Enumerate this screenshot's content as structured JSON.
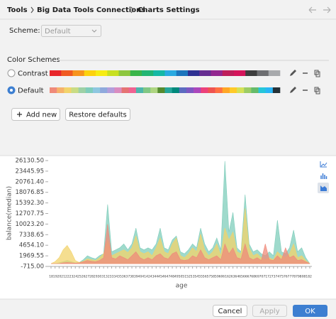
{
  "breadcrumb": [
    "Tools",
    "Big Data Tools Connections",
    "Charts Settings"
  ],
  "scheme": {
    "label": "Scheme:",
    "value": "Default"
  },
  "color_schemes": {
    "title": "Color Schemes",
    "items": [
      {
        "name": "Contrast",
        "selected": false,
        "colors": [
          "#e8262b",
          "#f05a22",
          "#f7941d",
          "#fdd10d",
          "#f7ec13",
          "#c8e021",
          "#8dc63f",
          "#3ab54a",
          "#22b573",
          "#15b8a5",
          "#29aae1",
          "#1c75bc",
          "#2e3192",
          "#662d91",
          "#92278f",
          "#be1e5a",
          "#d4145a",
          "#3d3d3d",
          "#6d6e71",
          "#a7a9ac"
        ]
      },
      {
        "name": "Default",
        "selected": true,
        "colors": [
          "#ef8a7a",
          "#f6b26b",
          "#f2d36b",
          "#c9dc84",
          "#9dd1a6",
          "#7fcdbb",
          "#8ec7e0",
          "#8fa9dc",
          "#b39ddb",
          "#d98cc0",
          "#e57373",
          "#f06292",
          "#4db6ac",
          "#81c784",
          "#aed581",
          "#558b2f",
          "#26a69a",
          "#00897b",
          "#5c6bc0",
          "#7e57c2",
          "#ab47bc",
          "#ec407a",
          "#ef5350",
          "#ff7043",
          "#ffa726",
          "#ffca28",
          "#d4e157",
          "#9ccc65",
          "#66bb6a",
          "#26c6da",
          "#29b6f6",
          "#263238"
        ]
      }
    ]
  },
  "buttons": {
    "add": "Add new",
    "restore": "Restore defaults"
  },
  "chart_data": {
    "type": "area",
    "x_label": "age",
    "y_label": "balance(median)",
    "x": [
      18,
      19,
      20,
      21,
      22,
      23,
      24,
      25,
      26,
      27,
      28,
      29,
      30,
      31,
      32,
      33,
      34,
      35,
      36,
      37,
      38,
      39,
      40,
      41,
      42,
      43,
      44,
      45,
      46,
      47,
      48,
      49,
      50,
      51,
      52,
      53,
      54,
      55,
      56,
      57,
      58,
      59,
      60,
      61,
      62,
      63,
      64,
      65,
      66,
      67,
      68,
      69,
      70,
      71,
      72,
      73,
      74,
      75,
      76,
      77,
      78,
      79,
      80,
      81,
      82
    ],
    "xlim": [
      18,
      82
    ],
    "ylim": [
      -715,
      26130.5
    ],
    "yticks": [
      {
        "value": 26130.5,
        "label": "26130.50"
      },
      23445.95,
      {
        "value": 20761.4,
        "label": "20761.40"
      },
      18076.85,
      {
        "value": 15392.3,
        "label": "15392.30"
      },
      12707.75,
      {
        "value": 10023.2,
        "label": "10023.20"
      },
      7338.65,
      {
        "value": 4654.1,
        "label": "4654.10"
      },
      1969.55,
      {
        "value": -715,
        "label": "-715.00"
      }
    ],
    "series": [
      {
        "color": "#7fcdbb",
        "values": [
          0,
          0,
          200,
          500,
          800,
          500,
          200,
          300,
          1000,
          2000,
          1500,
          1200,
          2000,
          2500,
          15000,
          3000,
          3500,
          4000,
          5000,
          3500,
          5000,
          9000,
          4000,
          3500,
          4000,
          3500,
          5000,
          9000,
          4000,
          3500,
          6000,
          7000,
          3000,
          2500,
          3500,
          5000,
          4000,
          9000,
          5000,
          3000,
          4000,
          6500,
          3500,
          26000,
          8000,
          13000,
          4000,
          3000,
          17500,
          5000,
          3000,
          3500,
          2500,
          2000,
          3000,
          2000,
          11000,
          3000,
          2500,
          4000,
          8500,
          3000,
          4000,
          1500,
          0
        ]
      },
      {
        "color": "#f2d36b",
        "values": [
          0,
          500,
          1500,
          3500,
          4600,
          3000,
          800,
          300,
          600,
          1200,
          1000,
          800,
          1500,
          2500,
          6000,
          2000,
          2500,
          3000,
          3500,
          2800,
          4000,
          7000,
          3000,
          2500,
          3000,
          2000,
          4000,
          6500,
          3000,
          2500,
          5000,
          6500,
          2000,
          1500,
          2500,
          4000,
          3000,
          7500,
          3500,
          2000,
          3000,
          5000,
          2000,
          9000,
          6000,
          8000,
          3000,
          2500,
          14000,
          4000,
          2000,
          2500,
          1500,
          1000,
          1500,
          1000,
          3000,
          2000,
          1500,
          2500,
          5000,
          1500,
          2000,
          800,
          0
        ]
      },
      {
        "color": "#ef8a7a",
        "values": [
          0,
          0,
          0,
          200,
          300,
          200,
          100,
          200,
          500,
          800,
          600,
          500,
          800,
          1500,
          10000,
          1500,
          1200,
          2000,
          1500,
          1000,
          2000,
          3000,
          1500,
          1000,
          1500,
          1000,
          2000,
          2500,
          1500,
          1200,
          2500,
          3000,
          1000,
          800,
          1000,
          2000,
          1500,
          3500,
          1500,
          1000,
          1500,
          2000,
          1000,
          5000,
          2500,
          4000,
          1500,
          1200,
          5000,
          1500,
          1000,
          1500,
          800,
          5000,
          1000,
          800,
          2000,
          1000,
          4000,
          1500,
          2000,
          800,
          1000,
          500,
          0
        ]
      }
    ]
  },
  "footer": {
    "cancel": "Cancel",
    "apply": "Apply",
    "ok": "OK"
  }
}
